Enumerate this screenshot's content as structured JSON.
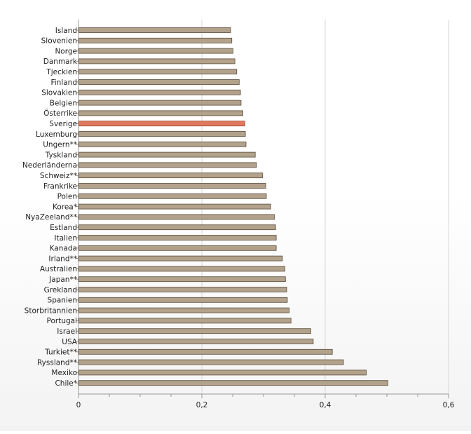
{
  "chart_data": {
    "type": "bar",
    "orientation": "horizontal",
    "title": "",
    "xlabel": "",
    "ylabel": "",
    "categories": [
      "Island",
      "Slovenien",
      "Norge",
      "Danmark",
      "Tjeckien",
      "Finland",
      "Slovakien",
      "Belgien",
      "Österrike",
      "Sverige",
      "Luxemburg",
      "Ungern**",
      "Tyskland",
      "Nederländerna",
      "Schweiz**",
      "Frankrike",
      "Polen",
      "Korea*",
      "NyaZeeland**",
      "Estland",
      "Italien",
      "Kanada",
      "Irland**",
      "Australien",
      "Japan**",
      "Grekland",
      "Spanien",
      "Storbritannien",
      "Portugal",
      "Israel",
      "USA",
      "Turkiet**",
      "Ryssland**",
      "Mexiko",
      "Chile*"
    ],
    "values": [
      0.246,
      0.248,
      0.25,
      0.253,
      0.256,
      0.26,
      0.262,
      0.263,
      0.266,
      0.269,
      0.27,
      0.271,
      0.286,
      0.288,
      0.298,
      0.303,
      0.304,
      0.311,
      0.317,
      0.319,
      0.32,
      0.32,
      0.33,
      0.334,
      0.335,
      0.337,
      0.338,
      0.341,
      0.344,
      0.376,
      0.38,
      0.411,
      0.429,
      0.466,
      0.501
    ],
    "highlight": "Sverige",
    "xlim": [
      0,
      0.6
    ],
    "xticks": [
      "0",
      "0,2",
      "0,4",
      "0,6"
    ],
    "grid": true,
    "colors": {
      "bar": "#b3a28b",
      "bar_border": "#5a4c3a",
      "highlight": "#e07a5f",
      "highlight_border": "#a0402a",
      "grid": "#d6d6d6",
      "axis": "#999999"
    }
  }
}
